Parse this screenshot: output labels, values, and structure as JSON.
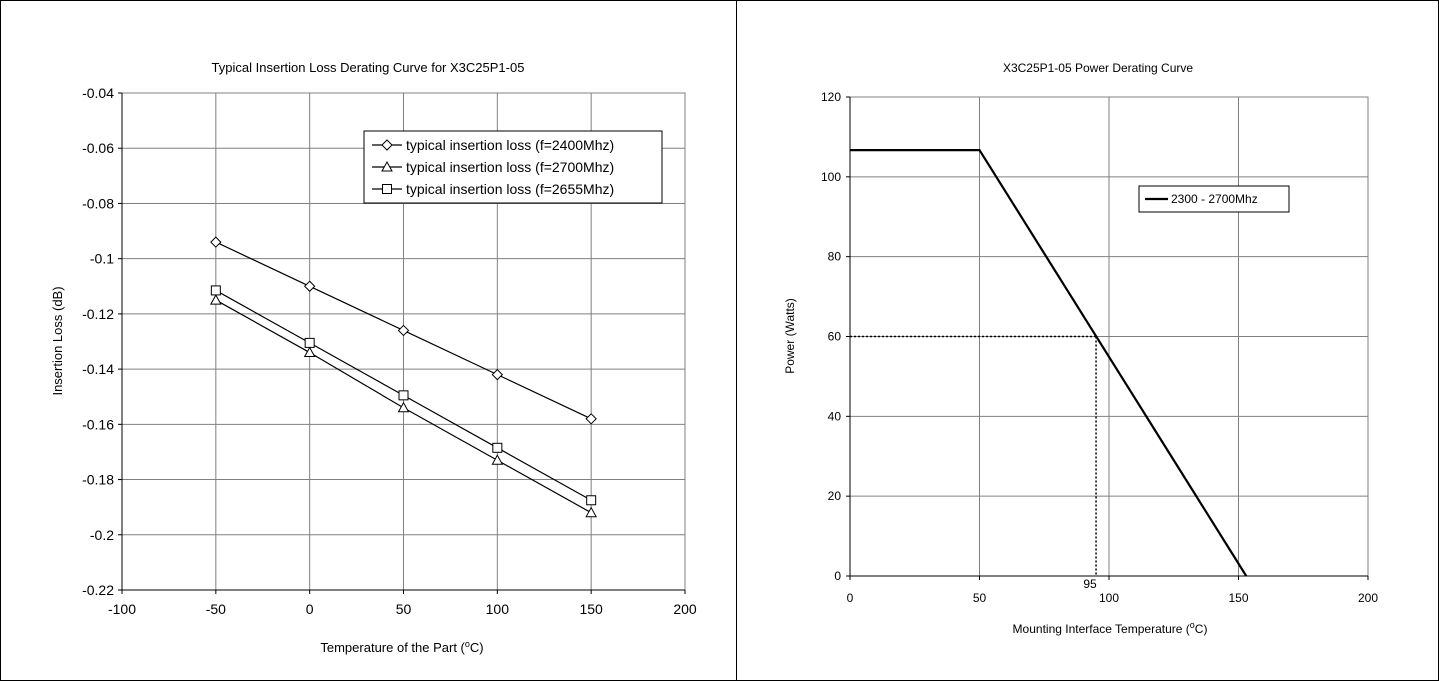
{
  "chart_data": [
    {
      "type": "line",
      "title": "Typical Insertion Loss Derating Curve for X3C25P1-05",
      "xlabel_main": "Temperature of the Part (",
      "xlabel_sup": "o",
      "xlabel_end": "C)",
      "ylabel": "Insertion Loss (dB)",
      "xlim": [
        -100,
        200
      ],
      "ylim": [
        -0.22,
        -0.04
      ],
      "x_ticks": [
        -100,
        -50,
        0,
        50,
        100,
        150,
        200
      ],
      "y_ticks": [
        -0.04,
        -0.06,
        -0.08,
        -0.1,
        -0.12,
        -0.14,
        -0.16,
        -0.18,
        -0.2,
        -0.22
      ],
      "x_tick_labels": [
        "-100",
        "-50",
        "0",
        "50",
        "100",
        "150",
        "200"
      ],
      "y_tick_labels": [
        "-0.04",
        "-0.06",
        "-0.08",
        "-0.1",
        "-0.12",
        "-0.14",
        "-0.16",
        "-0.18",
        "-0.2",
        "-0.22"
      ],
      "grid": true,
      "legend_position": "top-right",
      "x": [
        -50,
        0,
        50,
        100,
        150
      ],
      "series": [
        {
          "name": "typical insertion loss (f=2400Mhz)",
          "marker": "diamond",
          "values": [
            -0.094,
            -0.11,
            -0.126,
            -0.142,
            -0.158
          ]
        },
        {
          "name": "typical insertion loss (f=2700Mhz)",
          "marker": "triangle",
          "values": [
            -0.115,
            -0.134,
            -0.154,
            -0.173,
            -0.192
          ]
        },
        {
          "name": "typical insertion loss (f=2655Mhz)",
          "marker": "square",
          "values": [
            -0.1115,
            -0.1305,
            -0.1495,
            -0.1685,
            -0.1875
          ]
        }
      ]
    },
    {
      "type": "line",
      "title": "X3C25P1-05 Power Derating Curve",
      "xlabel_main": "Mounting Interface Temperature (",
      "xlabel_sup": "o",
      "xlabel_end": "C)",
      "ylabel": "Power (Watts)",
      "xlim": [
        0,
        200
      ],
      "ylim": [
        0,
        120
      ],
      "x_ticks": [
        0,
        50,
        100,
        150,
        200
      ],
      "y_ticks": [
        0,
        20,
        40,
        60,
        80,
        100,
        120
      ],
      "x_tick_labels": [
        "0",
        "50",
        "100",
        "150",
        "200"
      ],
      "y_tick_labels": [
        "0",
        "20",
        "40",
        "60",
        "80",
        "100",
        "120"
      ],
      "grid": true,
      "legend_position": "top-right",
      "series": [
        {
          "name": "2300 - 2700Mhz",
          "x": [
            0,
            50,
            153
          ],
          "values": [
            106.7,
            106.7,
            0
          ]
        }
      ],
      "annotation": {
        "label": "95",
        "x": 95,
        "y": 60
      }
    }
  ]
}
